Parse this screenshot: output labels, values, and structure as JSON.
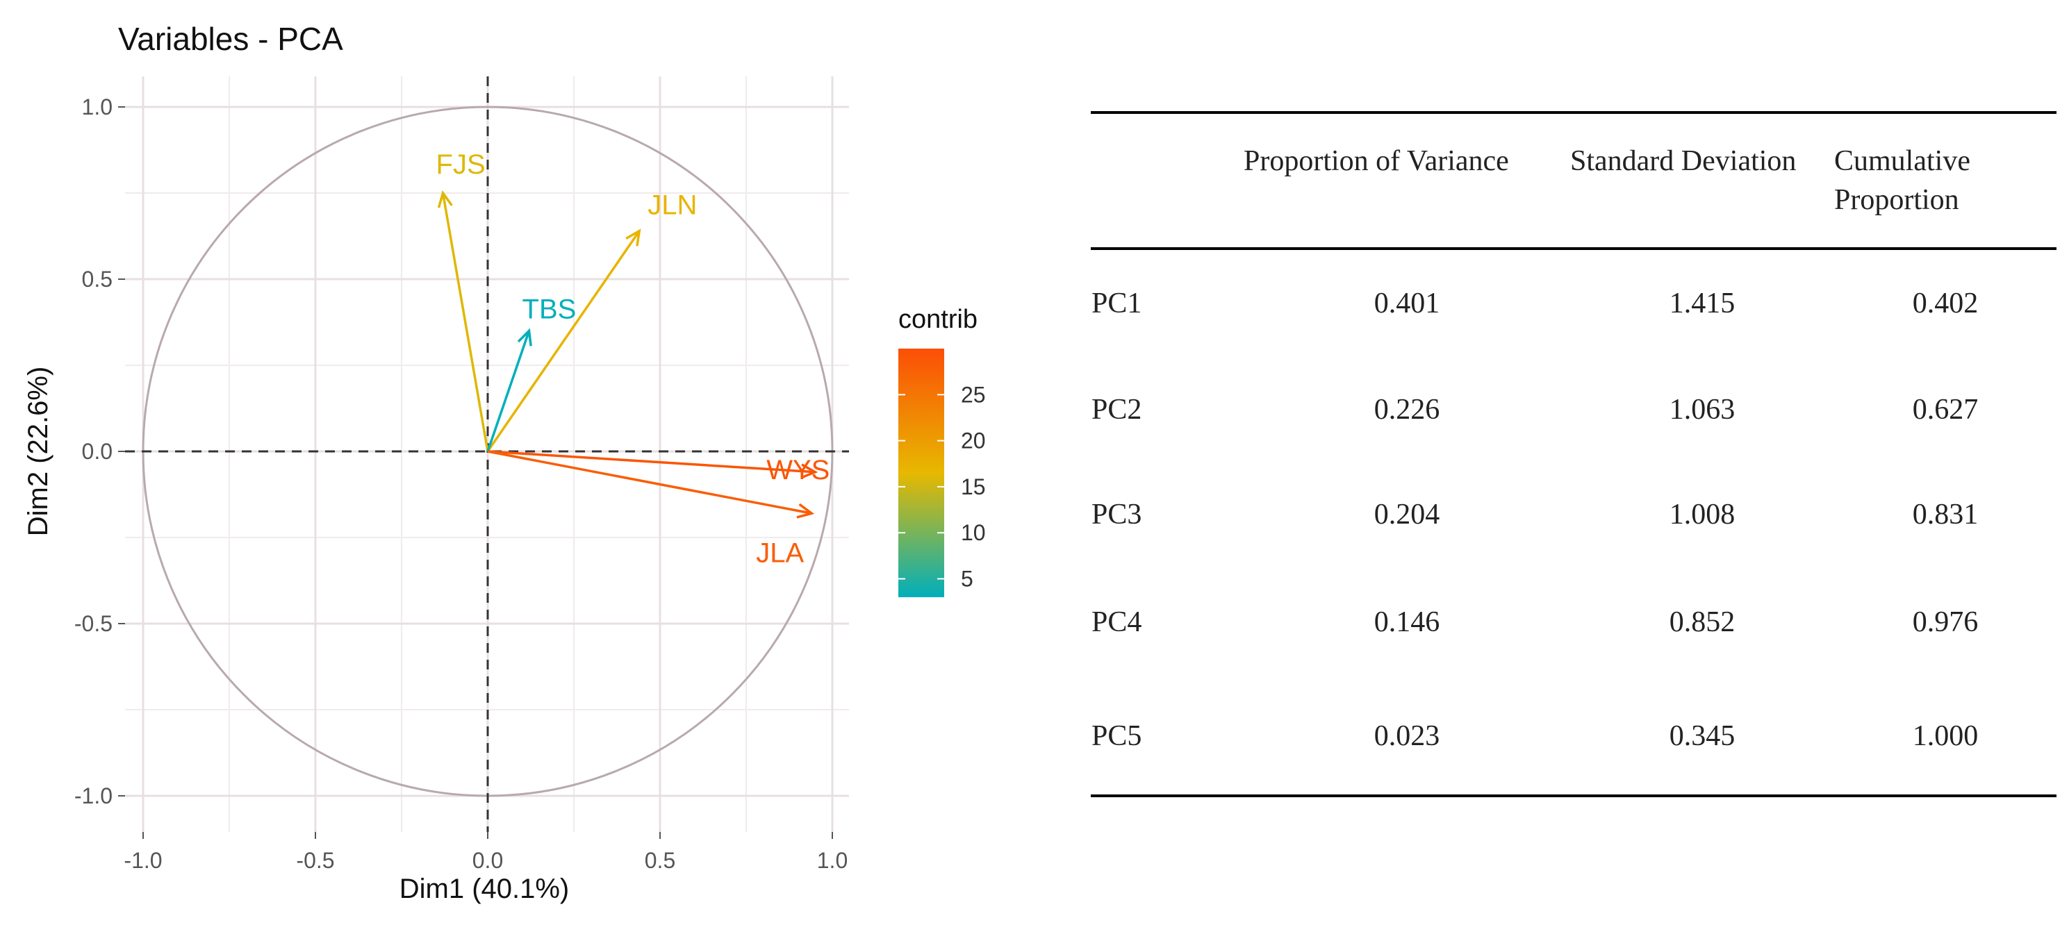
{
  "chart_data": {
    "type": "scatter",
    "subtype": "pca-variable-correlation-circle",
    "title": "Variables - PCA",
    "xlabel": "Dim1 (40.1%)",
    "ylabel": "Dim2 (22.6%)",
    "xlim": [
      -1.0,
      1.0
    ],
    "ylim": [
      -1.0,
      1.0
    ],
    "x_ticks": [
      "-1.0",
      "-0.5",
      "0.0",
      "0.5",
      "1.0"
    ],
    "y_ticks": [
      "-1.0",
      "-0.5",
      "0.0",
      "0.5",
      "1.0"
    ],
    "grid": true,
    "unit_circle": true,
    "variables": [
      {
        "name": "FJS",
        "x": -0.13,
        "y": 0.75,
        "contrib": 16
      },
      {
        "name": "JLN",
        "x": 0.44,
        "y": 0.64,
        "contrib": 17
      },
      {
        "name": "TBS",
        "x": 0.12,
        "y": 0.35,
        "contrib": 3
      },
      {
        "name": "WYS",
        "x": 0.95,
        "y": -0.06,
        "contrib": 29
      },
      {
        "name": "JLA",
        "x": 0.94,
        "y": -0.18,
        "contrib": 28
      }
    ],
    "legend": {
      "title": "contrib",
      "ticks": [
        "25",
        "20",
        "15",
        "10",
        "5"
      ],
      "range": [
        3,
        30
      ],
      "colors": [
        "#00AFBB",
        "#E7B800",
        "#FC4E07"
      ],
      "placement": "right"
    }
  },
  "table": {
    "headers": [
      "",
      "Proportion of Variance",
      "Standard Deviation",
      "Cumulative Proportion"
    ],
    "rows": [
      [
        "PC1",
        "0.401",
        "1.415",
        "0.402"
      ],
      [
        "PC2",
        "0.226",
        "1.063",
        "0.627"
      ],
      [
        "PC3",
        "0.204",
        "1.008",
        "0.831"
      ],
      [
        "PC4",
        "0.146",
        "0.852",
        "0.976"
      ],
      [
        "PC5",
        "0.023",
        "0.345",
        "1.000"
      ]
    ]
  }
}
